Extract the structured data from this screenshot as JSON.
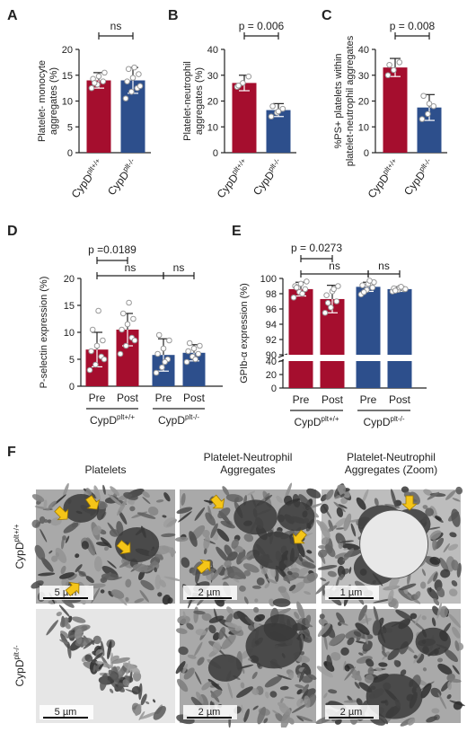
{
  "colors": {
    "red": "#a50e2e",
    "blue": "#2d4f8c"
  },
  "panels": {
    "A": {
      "letter": "A",
      "ylabel_lines": [
        "Platelet- monocyte",
        "aggregates (%)"
      ],
      "stat": "ns"
    },
    "B": {
      "letter": "B",
      "ylabel_lines": [
        "Platelet-neutrophil",
        "aggregates (%)"
      ],
      "stat": "p = 0.006"
    },
    "C": {
      "letter": "C",
      "ylabel_lines": [
        "%PS+ platelets within",
        "platelet-neutrophil aggregates"
      ],
      "stat": "p = 0.008"
    },
    "D": {
      "letter": "D",
      "ylabel": "P-selectin expression (%)",
      "stat1": "p =0.0189",
      "stat2": "ns",
      "stat3": "ns"
    },
    "E": {
      "letter": "E",
      "ylabel": "GPIb-α expression (%)",
      "stat1": "p = 0.0273",
      "stat2": "ns",
      "stat3": "ns"
    },
    "F": {
      "letter": "F"
    }
  },
  "groups": {
    "wt": {
      "base": "CypD",
      "sup": "plt+/+"
    },
    "ko": {
      "base": "CypD",
      "sup": "plt-/-"
    },
    "pre": "Pre",
    "post": "Post"
  },
  "chart_data": [
    {
      "panel": "A",
      "type": "bar",
      "categories": [
        "CypD plt+/+",
        "CypD plt-/-"
      ],
      "values": [
        14,
        14
      ],
      "errors": [
        1.5,
        2.5
      ],
      "ylim": [
        0,
        20
      ],
      "yticks": [
        0,
        5,
        10,
        15,
        20
      ],
      "points": [
        [
          12.5,
          13.2,
          13.8,
          14.3,
          14.8,
          15.5,
          13.5
        ],
        [
          10.5,
          11.8,
          12.5,
          13.8,
          14.5,
          15.2,
          16.2,
          16.5,
          12.9
        ]
      ]
    },
    {
      "panel": "B",
      "type": "bar",
      "categories": [
        "CypD plt+/+",
        "CypD plt-/-"
      ],
      "values": [
        27,
        16.5
      ],
      "errors": [
        3,
        2.5
      ],
      "ylim": [
        0,
        40
      ],
      "yticks": [
        0,
        10,
        20,
        30,
        40
      ],
      "points": [
        [
          25.5,
          27,
          29.5,
          26
        ],
        [
          14,
          15.5,
          17,
          18,
          16
        ]
      ]
    },
    {
      "panel": "C",
      "type": "bar",
      "categories": [
        "CypD plt+/+",
        "CypD plt-/-"
      ],
      "values": [
        33,
        17.5
      ],
      "errors": [
        3.5,
        5
      ],
      "ylim": [
        0,
        40
      ],
      "yticks": [
        0,
        10,
        20,
        30,
        40
      ],
      "points": [
        [
          30,
          32,
          35,
          34
        ],
        [
          13,
          15,
          18,
          22,
          19
        ]
      ]
    },
    {
      "panel": "D",
      "type": "bar",
      "categories": [
        "Pre",
        "Post",
        "Pre",
        "Post"
      ],
      "values": [
        6.8,
        10.5,
        5.8,
        6.2
      ],
      "errors": [
        3.2,
        3,
        3,
        1.5
      ],
      "ylim": [
        0,
        20
      ],
      "yticks": [
        0,
        5,
        10,
        15,
        20
      ],
      "points": [
        [
          3,
          4,
          5.5,
          6.5,
          7.5,
          8.5,
          10.5,
          14,
          5
        ],
        [
          6,
          7.5,
          9,
          10.5,
          11.5,
          12.5,
          13.5,
          15.5,
          8.5
        ],
        [
          2.5,
          3.5,
          5,
          6,
          7,
          8.5,
          9.5,
          4.5
        ],
        [
          4.5,
          5.5,
          6,
          6.5,
          7,
          7.5,
          8,
          5
        ]
      ]
    },
    {
      "panel": "E",
      "type": "bar",
      "categories": [
        "Pre",
        "Post",
        "Pre",
        "Post"
      ],
      "values": [
        98.6,
        97.3,
        98.9,
        98.6
      ],
      "errors": [
        0.9,
        1.8,
        0.6,
        0.3
      ],
      "yticks": [
        0,
        20,
        40,
        90,
        92,
        94,
        96,
        98,
        100
      ],
      "points": [
        [
          97.5,
          98.2,
          98.6,
          99,
          99.3,
          99.6,
          98.8,
          98
        ],
        [
          95.5,
          96.2,
          97,
          97.8,
          98.3,
          99,
          96.8,
          98.6
        ],
        [
          97.9,
          98.5,
          98.8,
          99.1,
          99.3,
          99.5,
          98.2,
          99.7
        ],
        [
          98.3,
          98.5,
          98.6,
          98.7,
          98.8,
          98.6,
          98.4,
          98.9
        ]
      ]
    }
  ],
  "em": {
    "columns": [
      "Platelets",
      "Platelet-Neutrophil\nAggregates",
      "Platelet-Neutrophil\nAggregates (Zoom)"
    ],
    "scalebars": [
      [
        "5 µm",
        "2 µm",
        "1 µm"
      ],
      [
        "5 µm",
        "2 µm",
        "2 µm"
      ]
    ]
  }
}
